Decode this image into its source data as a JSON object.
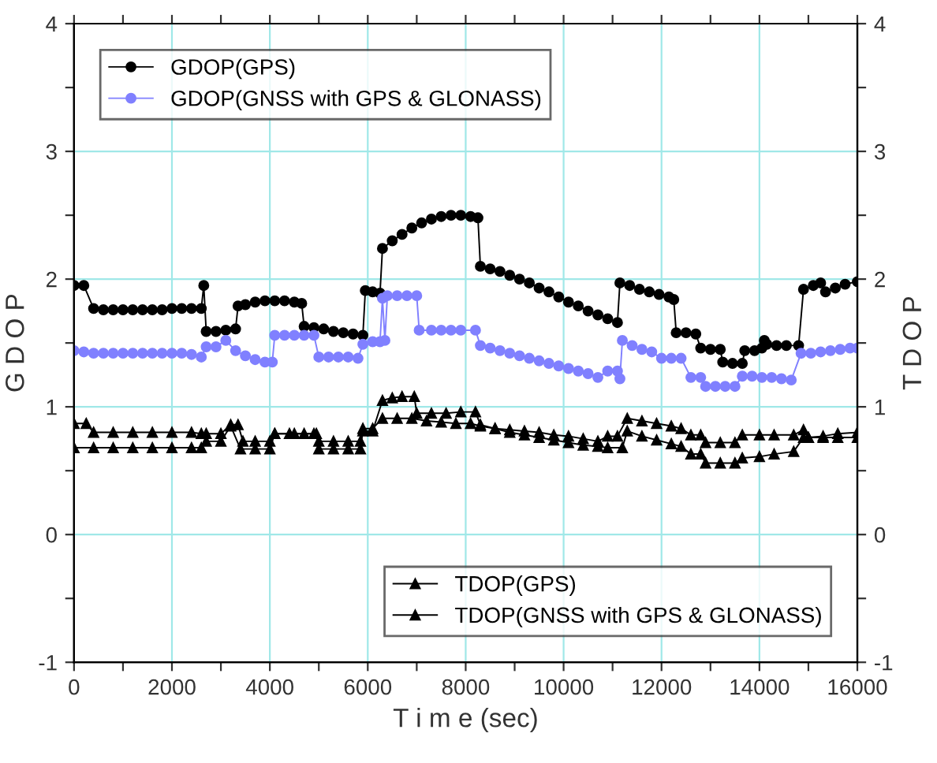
{
  "chart_data": {
    "type": "line",
    "xlabel": "T i m e (sec)",
    "ylabel": "G D O P",
    "y2label": "T D O P",
    "xlim": [
      0,
      16000
    ],
    "xticks": [
      0,
      {
        "value": 1000,
        "label": null
      },
      2000,
      {
        "value": 3000,
        "label": null
      },
      4000,
      {
        "value": 5000,
        "label": null
      },
      6000,
      {
        "value": 7000,
        "label": null
      },
      8000,
      {
        "value": 9000,
        "label": null
      },
      10000,
      {
        "value": 11000,
        "label": null
      },
      12000,
      {
        "value": 13000,
        "label": null
      },
      14000,
      {
        "value": 15000,
        "label": null
      },
      16000
    ],
    "ylim": [
      -1,
      4
    ],
    "yticks": [
      -1,
      {
        "value": -0.5,
        "label": null
      },
      0,
      {
        "value": 0.5,
        "label": null
      },
      1,
      {
        "value": 1.5,
        "label": null
      },
      2,
      {
        "value": 2.5,
        "label": null
      },
      3,
      {
        "value": 3.5,
        "label": null
      },
      4
    ],
    "y2lim": [
      -1,
      4
    ],
    "y2ticks": [
      -1,
      {
        "value": -0.5,
        "label": null
      },
      0,
      {
        "value": 0.5,
        "label": null
      },
      1,
      {
        "value": 1.5,
        "label": null
      },
      2,
      {
        "value": 2.5,
        "label": null
      },
      3,
      {
        "value": 3.5,
        "label": null
      },
      4
    ],
    "grid": true,
    "legend": [
      "top left",
      "bottom right"
    ],
    "line_style": "solid",
    "series": [
      {
        "name": "GDOP(GPS)",
        "color": "#000000",
        "marker": "circle",
        "x": [
          0,
          200,
          400,
          600,
          800,
          1000,
          1200,
          1400,
          1600,
          1800,
          2000,
          2200,
          2400,
          2600,
          2650,
          2700,
          2900,
          3100,
          3300,
          3350,
          3500,
          3700,
          3900,
          4100,
          4300,
          4500,
          4650,
          4700,
          4900,
          5100,
          5300,
          5500,
          5700,
          5900,
          5950,
          6100,
          6250,
          6300,
          6500,
          6700,
          6900,
          7100,
          7300,
          7500,
          7700,
          7900,
          8100,
          8250,
          8300,
          8500,
          8700,
          8900,
          9100,
          9300,
          9500,
          9700,
          9900,
          10100,
          10300,
          10500,
          10700,
          10900,
          11100,
          11150,
          11350,
          11550,
          11750,
          11950,
          12150,
          12250,
          12300,
          12500,
          12700,
          12800,
          13000,
          13200,
          13250,
          13450,
          13650,
          13700,
          13900,
          14050,
          14100,
          14150,
          14350,
          14550,
          14800,
          14900,
          15100,
          15250,
          15350,
          15550,
          15750,
          16000
        ],
        "values": [
          1.95,
          1.95,
          1.77,
          1.76,
          1.76,
          1.76,
          1.76,
          1.76,
          1.76,
          1.76,
          1.77,
          1.77,
          1.77,
          1.77,
          1.95,
          1.59,
          1.59,
          1.6,
          1.61,
          1.79,
          1.8,
          1.82,
          1.83,
          1.83,
          1.83,
          1.82,
          1.81,
          1.63,
          1.62,
          1.61,
          1.59,
          1.58,
          1.57,
          1.56,
          1.91,
          1.9,
          1.89,
          2.24,
          2.3,
          2.35,
          2.4,
          2.44,
          2.47,
          2.49,
          2.5,
          2.5,
          2.49,
          2.48,
          2.1,
          2.08,
          2.06,
          2.03,
          2.0,
          1.97,
          1.93,
          1.9,
          1.86,
          1.82,
          1.79,
          1.75,
          1.72,
          1.69,
          1.66,
          1.97,
          1.95,
          1.92,
          1.9,
          1.88,
          1.86,
          1.84,
          1.58,
          1.58,
          1.57,
          1.46,
          1.45,
          1.45,
          1.35,
          1.34,
          1.34,
          1.44,
          1.44,
          1.46,
          1.52,
          1.49,
          1.48,
          1.48,
          1.48,
          1.92,
          1.95,
          1.97,
          1.9,
          1.93,
          1.96,
          1.98
        ]
      },
      {
        "name": "GDOP(GNSS with GPS & GLONASS)",
        "color": "#8080ff",
        "marker": "circle",
        "x": [
          0,
          200,
          400,
          600,
          800,
          1000,
          1200,
          1400,
          1600,
          1800,
          2000,
          2200,
          2400,
          2600,
          2700,
          2900,
          3100,
          3300,
          3500,
          3700,
          3900,
          4050,
          4100,
          4300,
          4500,
          4700,
          4900,
          5000,
          5200,
          5400,
          5600,
          5800,
          5900,
          6100,
          6250,
          6300,
          6350,
          6400,
          6600,
          6800,
          7000,
          7050,
          7300,
          7500,
          7700,
          7900,
          8200,
          8300,
          8500,
          8700,
          8900,
          9100,
          9300,
          9500,
          9700,
          9900,
          10100,
          10300,
          10500,
          10700,
          10900,
          11100,
          11150,
          11200,
          11400,
          11600,
          11800,
          12000,
          12200,
          12400,
          12600,
          12800,
          12900,
          13100,
          13300,
          13500,
          13650,
          13850,
          14050,
          14250,
          14450,
          14650,
          14850,
          15050,
          15250,
          15450,
          15650,
          15850,
          16000
        ],
        "values": [
          1.44,
          1.43,
          1.42,
          1.42,
          1.42,
          1.42,
          1.42,
          1.42,
          1.42,
          1.42,
          1.42,
          1.42,
          1.41,
          1.39,
          1.47,
          1.47,
          1.52,
          1.44,
          1.4,
          1.37,
          1.35,
          1.35,
          1.56,
          1.56,
          1.56,
          1.56,
          1.56,
          1.39,
          1.39,
          1.39,
          1.39,
          1.38,
          1.49,
          1.51,
          1.51,
          1.85,
          1.52,
          1.87,
          1.87,
          1.87,
          1.87,
          1.6,
          1.6,
          1.6,
          1.6,
          1.6,
          1.6,
          1.48,
          1.46,
          1.44,
          1.42,
          1.4,
          1.38,
          1.36,
          1.34,
          1.32,
          1.3,
          1.28,
          1.26,
          1.23,
          1.28,
          1.28,
          1.22,
          1.52,
          1.48,
          1.45,
          1.43,
          1.38,
          1.38,
          1.38,
          1.23,
          1.23,
          1.16,
          1.16,
          1.16,
          1.16,
          1.24,
          1.24,
          1.23,
          1.23,
          1.22,
          1.21,
          1.42,
          1.42,
          1.43,
          1.44,
          1.45,
          1.46,
          1.46
        ]
      },
      {
        "name": "TDOP(GPS)",
        "color": "#000000",
        "marker": "triangle",
        "axis": "y2",
        "x": [
          0,
          250,
          400,
          800,
          1200,
          1600,
          2000,
          2400,
          2600,
          2700,
          3000,
          3200,
          3350,
          3450,
          3700,
          4000,
          4100,
          4500,
          4900,
          5000,
          5300,
          5600,
          5850,
          5900,
          6100,
          6300,
          6600,
          6900,
          7200,
          7500,
          7800,
          8100,
          8300,
          8600,
          8900,
          9200,
          9500,
          9800,
          10100,
          10400,
          10700,
          10900,
          11100,
          11300,
          11600,
          11900,
          12200,
          12400,
          12600,
          12800,
          12900,
          13200,
          13500,
          13650,
          14000,
          14300,
          14700,
          14900,
          15000,
          15300,
          15600,
          16000
        ],
        "values": [
          0.87,
          0.87,
          0.8,
          0.8,
          0.8,
          0.8,
          0.8,
          0.8,
          0.79,
          0.79,
          0.79,
          0.86,
          0.86,
          0.73,
          0.73,
          0.73,
          0.79,
          0.79,
          0.79,
          0.73,
          0.73,
          0.73,
          0.73,
          0.83,
          0.83,
          0.91,
          0.91,
          0.91,
          0.89,
          0.88,
          0.87,
          0.87,
          0.85,
          0.83,
          0.82,
          0.81,
          0.8,
          0.78,
          0.77,
          0.75,
          0.73,
          0.77,
          0.77,
          0.91,
          0.89,
          0.87,
          0.85,
          0.83,
          0.78,
          0.78,
          0.72,
          0.72,
          0.72,
          0.78,
          0.78,
          0.78,
          0.78,
          0.82,
          0.76,
          0.76,
          0.76,
          0.76
        ]
      },
      {
        "name": "TDOP(GNSS with GPS & GLONASS)",
        "color": "#000000",
        "marker": "triangle",
        "axis": "y2",
        "x": [
          0,
          400,
          800,
          1200,
          1600,
          2000,
          2400,
          2600,
          2700,
          3000,
          3200,
          3400,
          3700,
          4000,
          4100,
          4400,
          4700,
          4950,
          5000,
          5300,
          5600,
          5850,
          5900,
          6100,
          6300,
          6500,
          6700,
          6950,
          7000,
          7300,
          7600,
          7900,
          8200,
          8300,
          8600,
          8900,
          9200,
          9500,
          9800,
          10100,
          10400,
          10700,
          10900,
          11200,
          11300,
          11600,
          11900,
          12200,
          12400,
          12600,
          12800,
          12900,
          13200,
          13500,
          13650,
          14000,
          14300,
          14700,
          14900,
          15000,
          15300,
          15600,
          16000
        ],
        "values": [
          0.68,
          0.68,
          0.68,
          0.68,
          0.68,
          0.68,
          0.68,
          0.68,
          0.73,
          0.73,
          0.85,
          0.67,
          0.67,
          0.67,
          0.79,
          0.79,
          0.79,
          0.79,
          0.67,
          0.67,
          0.67,
          0.67,
          0.81,
          0.81,
          1.05,
          1.07,
          1.08,
          1.08,
          0.95,
          0.95,
          0.95,
          0.96,
          0.96,
          0.86,
          0.83,
          0.8,
          0.78,
          0.76,
          0.74,
          0.72,
          0.7,
          0.69,
          0.68,
          0.68,
          0.81,
          0.77,
          0.74,
          0.71,
          0.69,
          0.63,
          0.63,
          0.56,
          0.56,
          0.56,
          0.6,
          0.61,
          0.63,
          0.65,
          0.76,
          0.76,
          0.77,
          0.79,
          0.8
        ]
      }
    ]
  }
}
